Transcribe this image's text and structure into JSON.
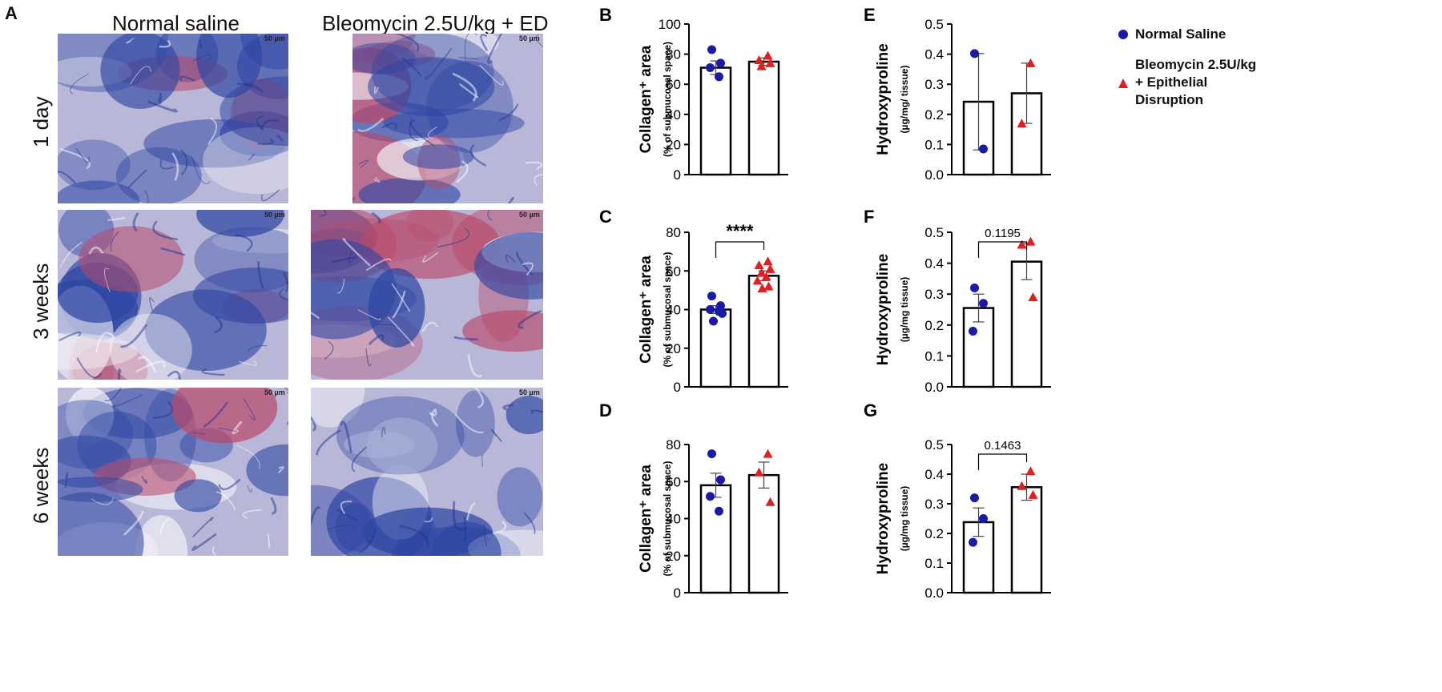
{
  "figure": {
    "panel_A_label": "A",
    "col_titles": [
      "Normal saline",
      "Bleomycin 2.5U/kg + ED"
    ],
    "row_labels": [
      "1 day",
      "3 weeks",
      "6 weeks"
    ],
    "scale_bar_label": "50 µm",
    "legend": {
      "entries": [
        {
          "label": "Normal Saline",
          "color": "#1a1aa8",
          "marker": "circle"
        },
        {
          "label_lines": [
            "Bleomycin 2.5U/kg",
            "+ Epithelial",
            "Disruption"
          ],
          "color": "#e21f1f",
          "marker": "triangle"
        }
      ]
    },
    "micrograph_palette": {
      "base": "#b9b7d8",
      "blue": "#2e46a3",
      "pink": "#b84a6a",
      "white": "#f4f4f8"
    }
  },
  "chart_data": [
    {
      "panel": "B",
      "type": "bar",
      "ylabel": "Collagen⁺ area",
      "ysub": "(% of submucosal space)",
      "ylim": [
        0,
        100
      ],
      "yticks": [
        "0",
        "20",
        "40",
        "60",
        "80",
        "100"
      ],
      "series": [
        {
          "group": "Normal Saline",
          "mean": 71,
          "sem": 4.5,
          "points": [
            83,
            74,
            71,
            65
          ],
          "marker": "circle"
        },
        {
          "group": "Bleomycin",
          "mean": 75,
          "sem": 2.5,
          "points": [
            79,
            76,
            74,
            72
          ],
          "marker": "triangle"
        }
      ],
      "annotation": ""
    },
    {
      "panel": "C",
      "type": "bar",
      "ylabel": "Collagen⁺ area",
      "ysub": "(% of submucosal space)",
      "ylim": [
        0,
        80
      ],
      "yticks": [
        "0",
        "20",
        "40",
        "60",
        "80"
      ],
      "series": [
        {
          "group": "Normal Saline",
          "mean": 40,
          "sem": 2.0,
          "points": [
            47,
            42,
            40,
            39,
            38,
            34
          ],
          "marker": "circle"
        },
        {
          "group": "Bleomycin",
          "mean": 57.5,
          "sem": 2.5,
          "points": [
            65,
            63,
            61,
            59,
            57,
            55,
            52,
            51
          ],
          "marker": "triangle"
        }
      ],
      "annotation": "****"
    },
    {
      "panel": "D",
      "type": "bar",
      "ylabel": "Collagen⁺ area",
      "ysub": "(% of submucosal space)",
      "ylim": [
        0,
        80
      ],
      "yticks": [
        "0",
        "20",
        "40",
        "60",
        "80"
      ],
      "series": [
        {
          "group": "Normal Saline",
          "mean": 58,
          "sem": 6.5,
          "points": [
            75,
            61,
            52,
            44
          ],
          "marker": "circle"
        },
        {
          "group": "Bleomycin",
          "mean": 63.5,
          "sem": 7,
          "points": [
            75,
            65,
            49
          ],
          "marker": "triangle"
        }
      ],
      "annotation": ""
    },
    {
      "panel": "E",
      "type": "bar",
      "ylabel": "Hydroxyproline",
      "ysub": "(µg/mg/ tissue)",
      "ylim": [
        0,
        0.5
      ],
      "yticks": [
        "0.0",
        "0.1",
        "0.2",
        "0.3",
        "0.4",
        "0.5"
      ],
      "series": [
        {
          "group": "Normal Saline",
          "mean": 0.242,
          "sem": 0.16,
          "points": [
            0.402,
            0.085
          ],
          "marker": "circle"
        },
        {
          "group": "Bleomycin",
          "mean": 0.27,
          "sem": 0.1,
          "points": [
            0.37,
            0.17
          ],
          "marker": "triangle"
        }
      ],
      "annotation": ""
    },
    {
      "panel": "F",
      "type": "bar",
      "ylabel": "Hydroxyproline",
      "ysub": "(µg/mg tissue)",
      "ylim": [
        0,
        0.5
      ],
      "yticks": [
        "0.0",
        "0.1",
        "0.2",
        "0.3",
        "0.4",
        "0.5"
      ],
      "series": [
        {
          "group": "Normal Saline",
          "mean": 0.255,
          "sem": 0.045,
          "points": [
            0.32,
            0.27,
            0.18
          ],
          "marker": "circle"
        },
        {
          "group": "Bleomycin",
          "mean": 0.405,
          "sem": 0.058,
          "points": [
            0.47,
            0.46,
            0.29
          ],
          "marker": "triangle"
        }
      ],
      "annotation": "0.1195"
    },
    {
      "panel": "G",
      "type": "bar",
      "ylabel": "Hydroxyproline",
      "ysub": "(µg/mg tissue)",
      "ylim": [
        0,
        0.5
      ],
      "yticks": [
        "0.0",
        "0.1",
        "0.2",
        "0.3",
        "0.4",
        "0.5"
      ],
      "series": [
        {
          "group": "Normal Saline",
          "mean": 0.238,
          "sem": 0.048,
          "points": [
            0.32,
            0.25,
            0.17
          ],
          "marker": "circle"
        },
        {
          "group": "Bleomycin",
          "mean": 0.356,
          "sem": 0.044,
          "points": [
            0.41,
            0.36,
            0.33
          ],
          "marker": "triangle"
        }
      ],
      "annotation": "0.1463"
    }
  ]
}
